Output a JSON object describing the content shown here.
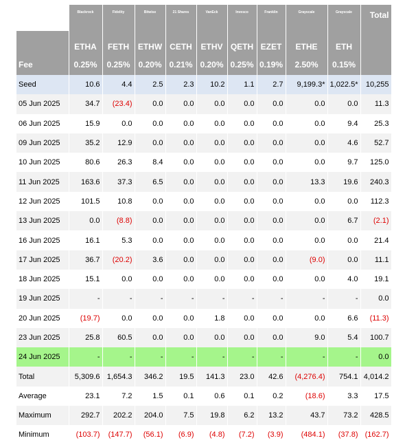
{
  "table": {
    "issuers": [
      "Blackrock",
      "Fidelity",
      "Bitwise",
      "21 Shares",
      "VanEck",
      "Invesco",
      "Franklin",
      "Grayscale",
      "Grayscale",
      "Total"
    ],
    "tickers": [
      "ETHA",
      "FETH",
      "ETHW",
      "CETH",
      "ETHV",
      "QETH",
      "EZET",
      "ETHE",
      "ETH"
    ],
    "fee_label": "Fee",
    "fees": [
      "0.25%",
      "0.25%",
      "0.20%",
      "0.21%",
      "0.20%",
      "0.25%",
      "0.19%",
      "2.50%",
      "0.15%"
    ],
    "rows": [
      {
        "label": "Seed",
        "cells": [
          "10.6",
          "4.4",
          "2.5",
          "2.3",
          "10.2",
          "1.1",
          "2.7",
          "9,199.3*",
          "1,022.5*",
          "10,255"
        ]
      },
      {
        "label": "05 Jun 2025",
        "cells": [
          "34.7",
          "(23.4)",
          "0.0",
          "0.0",
          "0.0",
          "0.0",
          "0.0",
          "0.0",
          "0.0",
          "11.3"
        ]
      },
      {
        "label": "06 Jun 2025",
        "cells": [
          "15.9",
          "0.0",
          "0.0",
          "0.0",
          "0.0",
          "0.0",
          "0.0",
          "0.0",
          "9.4",
          "25.3"
        ]
      },
      {
        "label": "09 Jun 2025",
        "cells": [
          "35.2",
          "12.9",
          "0.0",
          "0.0",
          "0.0",
          "0.0",
          "0.0",
          "0.0",
          "4.6",
          "52.7"
        ]
      },
      {
        "label": "10 Jun 2025",
        "cells": [
          "80.6",
          "26.3",
          "8.4",
          "0.0",
          "0.0",
          "0.0",
          "0.0",
          "0.0",
          "9.7",
          "125.0"
        ]
      },
      {
        "label": "11 Jun 2025",
        "cells": [
          "163.6",
          "37.3",
          "6.5",
          "0.0",
          "0.0",
          "0.0",
          "0.0",
          "13.3",
          "19.6",
          "240.3"
        ]
      },
      {
        "label": "12 Jun 2025",
        "cells": [
          "101.5",
          "10.8",
          "0.0",
          "0.0",
          "0.0",
          "0.0",
          "0.0",
          "0.0",
          "0.0",
          "112.3"
        ]
      },
      {
        "label": "13 Jun 2025",
        "cells": [
          "0.0",
          "(8.8)",
          "0.0",
          "0.0",
          "0.0",
          "0.0",
          "0.0",
          "0.0",
          "6.7",
          "(2.1)"
        ]
      },
      {
        "label": "16 Jun 2025",
        "cells": [
          "16.1",
          "5.3",
          "0.0",
          "0.0",
          "0.0",
          "0.0",
          "0.0",
          "0.0",
          "0.0",
          "21.4"
        ]
      },
      {
        "label": "17 Jun 2025",
        "cells": [
          "36.7",
          "(20.2)",
          "3.6",
          "0.0",
          "0.0",
          "0.0",
          "0.0",
          "(9.0)",
          "0.0",
          "11.1"
        ]
      },
      {
        "label": "18 Jun 2025",
        "cells": [
          "15.1",
          "0.0",
          "0.0",
          "0.0",
          "0.0",
          "0.0",
          "0.0",
          "0.0",
          "4.0",
          "19.1"
        ]
      },
      {
        "label": "19 Jun 2025",
        "cells": [
          "-",
          "-",
          "-",
          "-",
          "-",
          "-",
          "-",
          "-",
          "-",
          "0.0"
        ]
      },
      {
        "label": "20 Jun 2025",
        "cells": [
          "(19.7)",
          "0.0",
          "0.0",
          "0.0",
          "1.8",
          "0.0",
          "0.0",
          "0.0",
          "6.6",
          "(11.3)"
        ]
      },
      {
        "label": "23 Jun 2025",
        "cells": [
          "25.8",
          "60.5",
          "0.0",
          "0.0",
          "0.0",
          "0.0",
          "0.0",
          "9.0",
          "5.4",
          "100.7"
        ]
      },
      {
        "label": "24 Jun 2025",
        "cells": [
          "-",
          "-",
          "-",
          "-",
          "-",
          "-",
          "-",
          "-",
          "-",
          "0.0"
        ]
      },
      {
        "label": "Total",
        "cells": [
          "5,309.6",
          "1,654.3",
          "346.2",
          "19.5",
          "141.3",
          "23.0",
          "42.6",
          "(4,276.4)",
          "754.1",
          "4,014.2"
        ]
      },
      {
        "label": "Average",
        "cells": [
          "23.1",
          "7.2",
          "1.5",
          "0.1",
          "0.6",
          "0.1",
          "0.2",
          "(18.6)",
          "3.3",
          "17.5"
        ]
      },
      {
        "label": "Maximum",
        "cells": [
          "292.7",
          "202.2",
          "204.0",
          "7.5",
          "19.8",
          "6.2",
          "13.2",
          "43.7",
          "73.2",
          "428.5"
        ]
      },
      {
        "label": "Minimum",
        "cells": [
          "(103.7)",
          "(147.7)",
          "(56.1)",
          "(6.9)",
          "(4.8)",
          "(7.2)",
          "(3.9)",
          "(484.1)",
          "(37.8)",
          "(162.7)"
        ]
      }
    ]
  }
}
